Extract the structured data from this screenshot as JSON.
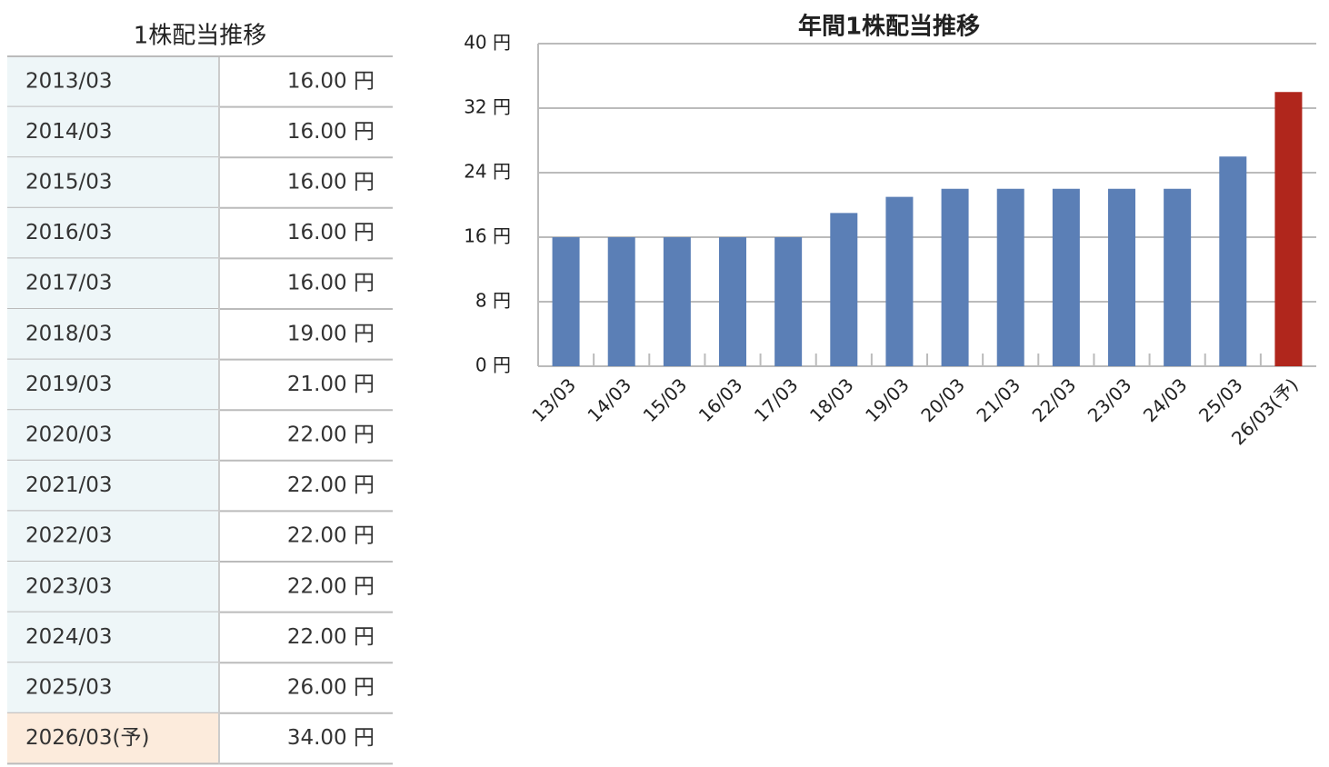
{
  "table": {
    "title": "1株配当推移",
    "rows": [
      [
        "2013/03",
        "16.00 円"
      ],
      [
        "2014/03",
        "16.00 円"
      ],
      [
        "2015/03",
        "16.00 円"
      ],
      [
        "2016/03",
        "16.00 円"
      ],
      [
        "2017/03",
        "16.00 円"
      ],
      [
        "2018/03",
        "19.00 円"
      ],
      [
        "2019/03",
        "21.00 円"
      ],
      [
        "2020/03",
        "22.00 円"
      ],
      [
        "2021/03",
        "22.00 円"
      ],
      [
        "2022/03",
        "22.00 円"
      ],
      [
        "2023/03",
        "22.00 円"
      ],
      [
        "2024/03",
        "22.00 円"
      ],
      [
        "2025/03",
        "26.00 円"
      ],
      [
        "2026/03(予)",
        "34.00 円"
      ]
    ]
  },
  "chart_data": {
    "type": "bar",
    "title": "年間1株配当推移",
    "categories": [
      "13/03",
      "14/03",
      "15/03",
      "16/03",
      "17/03",
      "18/03",
      "19/03",
      "20/03",
      "21/03",
      "22/03",
      "23/03",
      "24/03",
      "25/03",
      "26/03(予)"
    ],
    "values": [
      16,
      16,
      16,
      16,
      16,
      19,
      21,
      22,
      22,
      22,
      22,
      22,
      26,
      34
    ],
    "colors": [
      "#5b7fb6",
      "#5b7fb6",
      "#5b7fb6",
      "#5b7fb6",
      "#5b7fb6",
      "#5b7fb6",
      "#5b7fb6",
      "#5b7fb6",
      "#5b7fb6",
      "#5b7fb6",
      "#5b7fb6",
      "#5b7fb6",
      "#5b7fb6",
      "#b0261c"
    ],
    "ylim": [
      0,
      40
    ],
    "yticks": [
      {
        "value": 0,
        "label": "0 円"
      },
      {
        "value": 8,
        "label": "8 円"
      },
      {
        "value": 16,
        "label": "16 円"
      },
      {
        "value": 24,
        "label": "24 円"
      },
      {
        "value": 32,
        "label": "32 円"
      },
      {
        "value": 40,
        "label": "40 円"
      }
    ],
    "grid": true
  }
}
